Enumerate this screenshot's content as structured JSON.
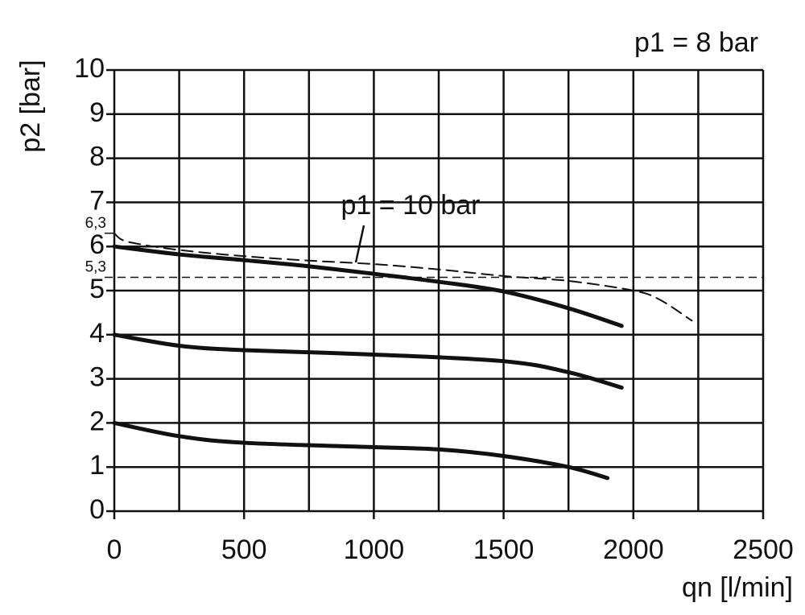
{
  "chart_data": {
    "type": "line",
    "title": "p1 = 8 bar",
    "xlabel": "qn [l/min]",
    "ylabel": "p2 [bar]",
    "xlim": [
      0,
      2500
    ],
    "ylim": [
      0,
      10
    ],
    "xticks": [
      0,
      500,
      1000,
      1500,
      2000,
      2500
    ],
    "x_minor_ticks": [
      250,
      750,
      1250,
      1750,
      2250
    ],
    "yticks": [
      0,
      1,
      2,
      3,
      4,
      5,
      6,
      7,
      8,
      9,
      10
    ],
    "y_marker_ticks": [
      {
        "value": 6.3,
        "label": "6,3"
      },
      {
        "value": 5.3,
        "label": "5,3"
      }
    ],
    "grid": true,
    "series": [
      {
        "color": "#111",
        "style": "solid",
        "x": [
          0,
          250,
          500,
          750,
          1000,
          1250,
          1500,
          1750,
          1955
        ],
        "values": [
          6.0,
          5.82,
          5.69,
          5.55,
          5.38,
          5.2,
          4.98,
          4.6,
          4.2
        ]
      },
      {
        "color": "#111",
        "style": "solid",
        "x": [
          0,
          250,
          500,
          1000,
          1500,
          1750,
          1955
        ],
        "values": [
          4.0,
          3.75,
          3.65,
          3.55,
          3.4,
          3.15,
          2.8
        ]
      },
      {
        "color": "#111",
        "style": "solid",
        "x": [
          0,
          250,
          500,
          1000,
          1250,
          1500,
          1750,
          1900
        ],
        "values": [
          2.0,
          1.7,
          1.55,
          1.45,
          1.4,
          1.25,
          1.0,
          0.75
        ]
      },
      {
        "name": "p1 = 10 bar",
        "color": "#111",
        "style": "dashed",
        "x": [
          0,
          30,
          100,
          250,
          500,
          750,
          1000,
          1250,
          1500,
          1750,
          2000,
          2100,
          2225
        ],
        "values": [
          6.3,
          6.15,
          6.05,
          5.92,
          5.78,
          5.68,
          5.6,
          5.48,
          5.33,
          5.22,
          5.0,
          4.8,
          4.32
        ]
      }
    ]
  }
}
